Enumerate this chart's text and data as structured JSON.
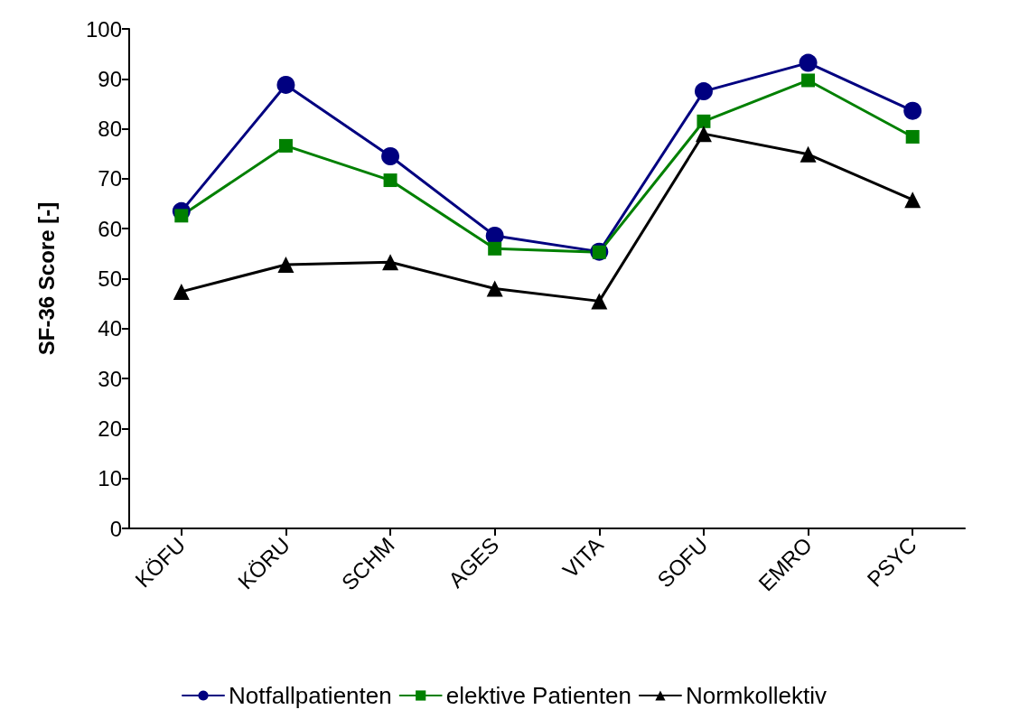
{
  "chart_data": {
    "type": "line",
    "ylabel": "SF-36 Score [-]",
    "categories": [
      "KÖFU",
      "KÖRU",
      "SCHM",
      "AGES",
      "VITA",
      "SOFU",
      "EMRO",
      "PSYC"
    ],
    "series": [
      {
        "name": "Notfallpatienten",
        "color": "#000080",
        "marker": "circle",
        "values": [
          63.5,
          88.8,
          74.5,
          58.6,
          55.4,
          87.5,
          93.2,
          83.6
        ]
      },
      {
        "name": "elektive Patienten",
        "color": "#008000",
        "marker": "square",
        "values": [
          62.6,
          76.6,
          69.7,
          56.0,
          55.3,
          81.5,
          89.7,
          78.4
        ]
      },
      {
        "name": "Normkollektiv",
        "color": "#000000",
        "marker": "triangle",
        "values": [
          47.4,
          52.8,
          53.3,
          48.0,
          45.5,
          79.0,
          74.9,
          65.8
        ]
      }
    ],
    "ylim": [
      0,
      100
    ],
    "yticks": [
      0,
      10,
      20,
      30,
      40,
      50,
      60,
      70,
      80,
      90,
      100
    ],
    "grid": false,
    "legend": "bottom",
    "line_style": "solid"
  }
}
